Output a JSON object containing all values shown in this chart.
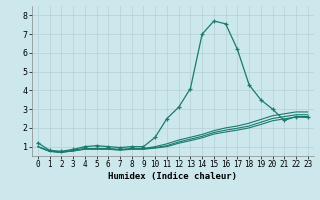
{
  "xlabel": "Humidex (Indice chaleur)",
  "background_color": "#cce8ec",
  "grid_color": "#b8d4d8",
  "line_color": "#1a7a6e",
  "x_ticks": [
    0,
    1,
    2,
    3,
    4,
    5,
    6,
    7,
    8,
    9,
    10,
    11,
    12,
    13,
    14,
    15,
    16,
    17,
    18,
    19,
    20,
    21,
    22,
    23
  ],
  "y_ticks": [
    1,
    2,
    3,
    4,
    5,
    6,
    7,
    8
  ],
  "ylim": [
    0.5,
    8.5
  ],
  "xlim": [
    -0.5,
    23.5
  ],
  "series": [
    {
      "x": [
        0,
        1,
        2,
        3,
        4,
        5,
        6,
        7,
        8,
        9,
        10,
        11,
        12,
        13,
        14,
        15,
        16,
        17,
        18,
        19,
        20,
        21,
        22,
        23
      ],
      "y": [
        1.2,
        0.8,
        0.75,
        0.85,
        1.0,
        1.05,
        1.0,
        0.95,
        1.0,
        1.0,
        1.5,
        2.5,
        3.1,
        4.1,
        7.0,
        7.7,
        7.55,
        6.2,
        4.3,
        3.5,
        3.0,
        2.4,
        2.6,
        2.6
      ],
      "marker": true
    },
    {
      "x": [
        0,
        1,
        2,
        3,
        4,
        5,
        6,
        7,
        8,
        9,
        10,
        11,
        12,
        13,
        14,
        15,
        16,
        17,
        18,
        19,
        20,
        21,
        22,
        23
      ],
      "y": [
        1.0,
        0.75,
        0.7,
        0.8,
        0.9,
        0.9,
        0.9,
        0.85,
        0.9,
        0.9,
        1.0,
        1.15,
        1.35,
        1.5,
        1.65,
        1.85,
        2.0,
        2.1,
        2.25,
        2.45,
        2.65,
        2.75,
        2.85,
        2.85
      ],
      "marker": false
    },
    {
      "x": [
        0,
        1,
        2,
        3,
        4,
        5,
        6,
        7,
        8,
        9,
        10,
        11,
        12,
        13,
        14,
        15,
        16,
        17,
        18,
        19,
        20,
        21,
        22,
        23
      ],
      "y": [
        1.0,
        0.75,
        0.7,
        0.78,
        0.88,
        0.88,
        0.88,
        0.83,
        0.88,
        0.88,
        0.95,
        1.05,
        1.25,
        1.4,
        1.55,
        1.75,
        1.88,
        1.98,
        2.1,
        2.3,
        2.5,
        2.6,
        2.7,
        2.7
      ],
      "marker": false
    },
    {
      "x": [
        0,
        1,
        2,
        3,
        4,
        5,
        6,
        7,
        8,
        9,
        10,
        11,
        12,
        13,
        14,
        15,
        16,
        17,
        18,
        19,
        20,
        21,
        22,
        23
      ],
      "y": [
        1.0,
        0.75,
        0.7,
        0.76,
        0.86,
        0.86,
        0.86,
        0.81,
        0.86,
        0.86,
        0.92,
        1.0,
        1.18,
        1.32,
        1.47,
        1.67,
        1.78,
        1.88,
        2.0,
        2.18,
        2.38,
        2.48,
        2.58,
        2.55
      ],
      "marker": false
    }
  ]
}
